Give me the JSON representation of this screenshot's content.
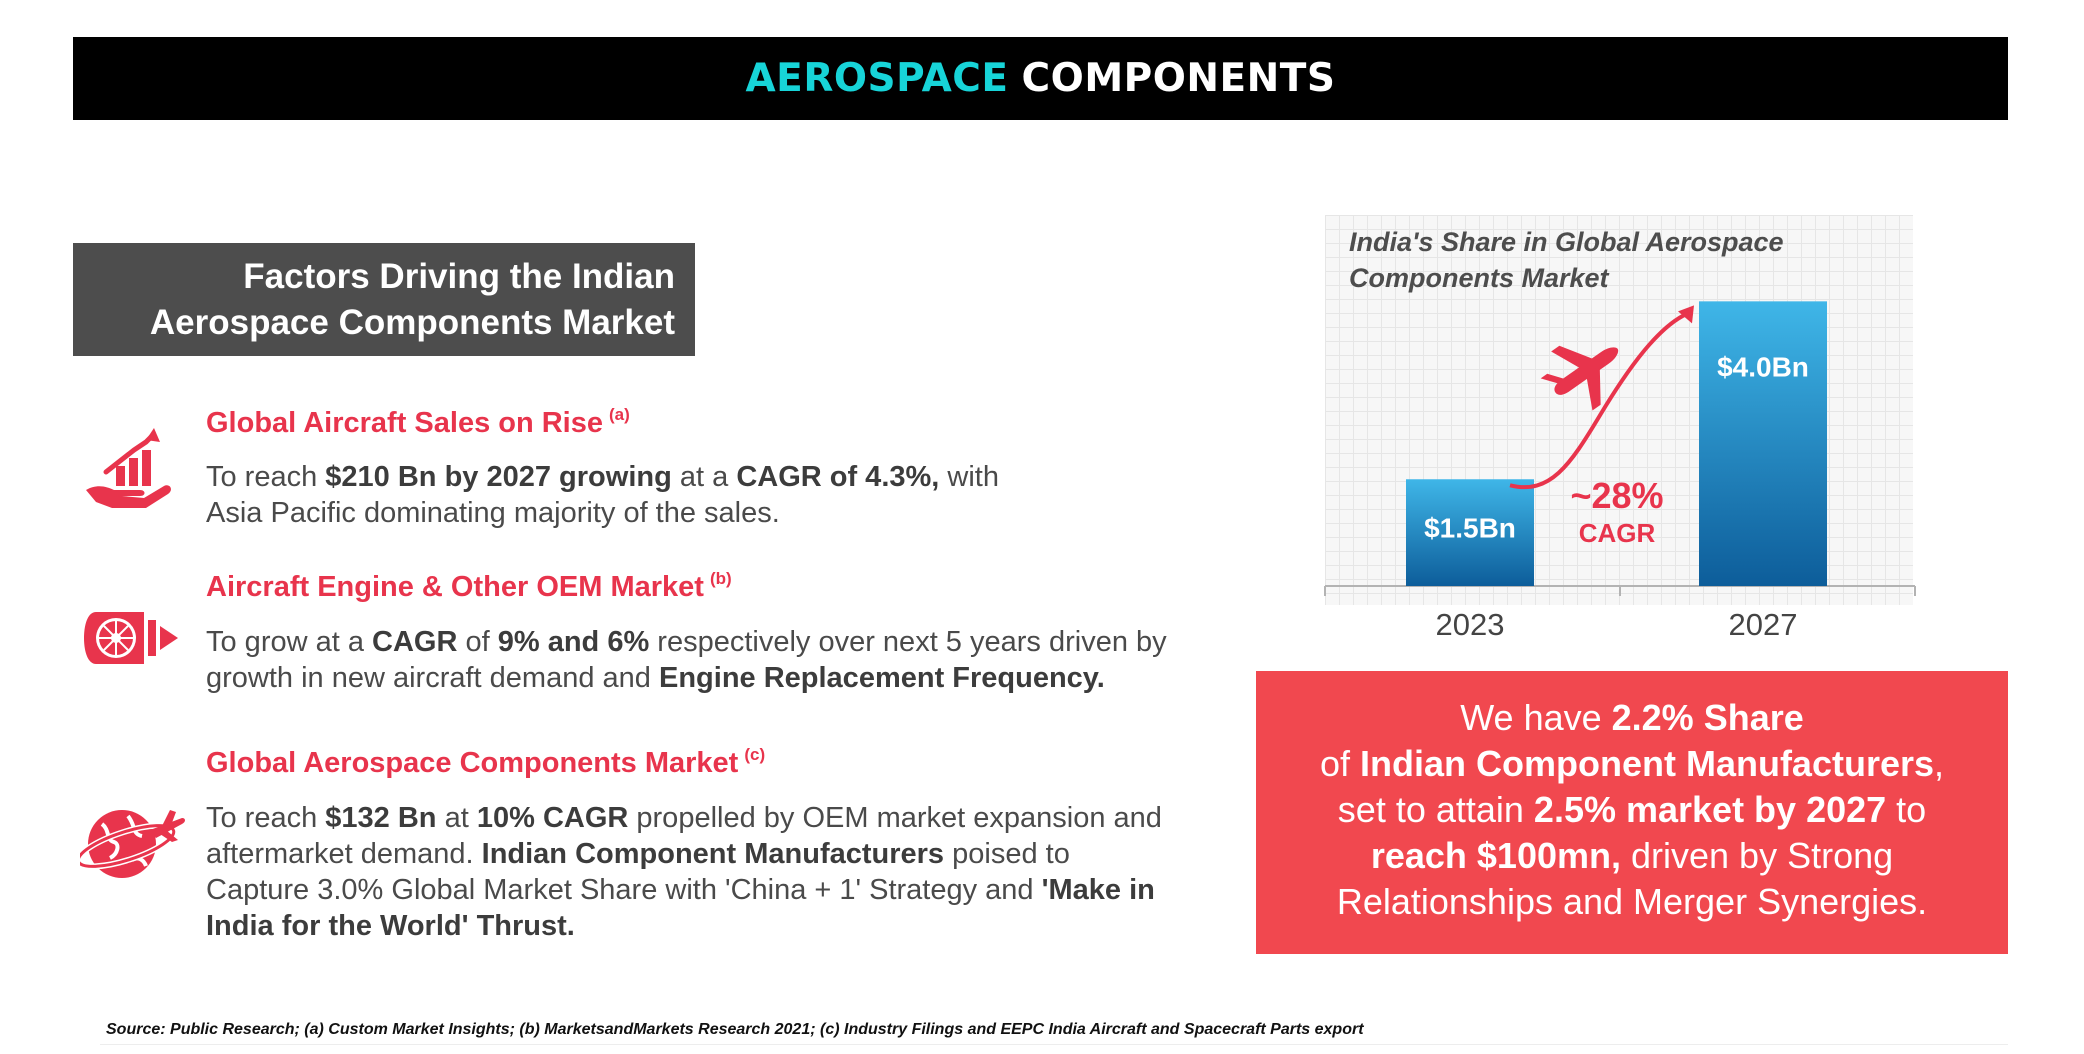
{
  "header": {
    "title_accent": "AEROSPACE",
    "title_rest": "COMPONENTS"
  },
  "factors": {
    "heading_line1": "Factors Driving the Indian",
    "heading_line2": "Aerospace Components Market",
    "items": [
      {
        "icon": "rising-bar-chart-hand-icon",
        "title": "Global Aircraft Sales on Rise",
        "ref": "(a)",
        "body": [
          {
            "t": "To reach ",
            "b": false
          },
          {
            "t": "$210 Bn by 2027 growing",
            "b": true
          },
          {
            "t": " at a ",
            "b": false
          },
          {
            "t": "CAGR of 4.3%,",
            "b": true
          },
          {
            "t": " with Asia Pacific dominating majority of the sales.",
            "b": false
          }
        ]
      },
      {
        "icon": "jet-engine-icon",
        "title": "Aircraft Engine & Other OEM Market",
        "ref": "(b)",
        "body": [
          {
            "t": "To grow at a ",
            "b": false
          },
          {
            "t": "CAGR",
            "b": true
          },
          {
            "t": " of ",
            "b": false
          },
          {
            "t": "9% and 6%",
            "b": true
          },
          {
            "t": " respectively over next 5 years driven by growth in new aircraft demand and ",
            "b": false
          },
          {
            "t": "Engine Replacement Frequency.",
            "b": true
          }
        ]
      },
      {
        "icon": "globe-airplane-icon",
        "title": "Global Aerospace Components Market",
        "ref": "(c)",
        "body": [
          {
            "t": "To reach ",
            "b": false
          },
          {
            "t": "$132 Bn",
            "b": true
          },
          {
            "t": " at ",
            "b": false
          },
          {
            "t": "10% CAGR",
            "b": true
          },
          {
            "t": " propelled by OEM market expansion and aftermarket demand. ",
            "b": false
          },
          {
            "t": "Indian Component Manufacturers",
            "b": true
          },
          {
            "t": " poised to Capture 3.0% Global Market Share with 'China + 1' Strategy and ",
            "b": false
          },
          {
            "t": "'Make in India for the World' Thrust.",
            "b": true
          }
        ]
      }
    ]
  },
  "chart_data": {
    "type": "bar",
    "title": "India's Share in Global Aerospace Components Market",
    "categories": [
      "2023",
      "2027"
    ],
    "values": [
      1.5,
      4.0
    ],
    "value_labels": [
      "$1.5Bn",
      "$4.0Bn"
    ],
    "unit": "$Bn",
    "ylim": [
      0,
      4.3
    ],
    "grid": true,
    "annotation": {
      "value": "~28%",
      "label": "CAGR"
    },
    "bar_color_top": "#3fb6e8",
    "bar_color_bottom": "#0d5d9a",
    "arrow_color": "#e8344c"
  },
  "highlight": {
    "lines": [
      [
        {
          "t": "We have ",
          "b": false
        },
        {
          "t": "2.2% Share",
          "b": true
        }
      ],
      [
        {
          "t": "of ",
          "b": false
        },
        {
          "t": "Indian Component Manufacturers",
          "b": true
        },
        {
          "t": ",",
          "b": false
        }
      ],
      [
        {
          "t": "set to attain ",
          "b": false
        },
        {
          "t": "2.5% market by 2027",
          "b": true
        },
        {
          "t": " to",
          "b": false
        }
      ],
      [
        {
          "t": "reach $100mn,",
          "b": true
        },
        {
          "t": " driven by Strong",
          "b": false
        }
      ],
      [
        {
          "t": "Relationships and Merger Synergies.",
          "b": false
        }
      ]
    ],
    "background": "#f1484f"
  },
  "source": "Source: Public Research; (a) Custom Market Insights; (b) MarketsandMarkets Research 2021; (c) Industry Filings and EEPC India Aircraft and Spacecraft Parts export",
  "colors": {
    "accent_cyan": "#17d4d8",
    "accent_red": "#e8344c"
  }
}
